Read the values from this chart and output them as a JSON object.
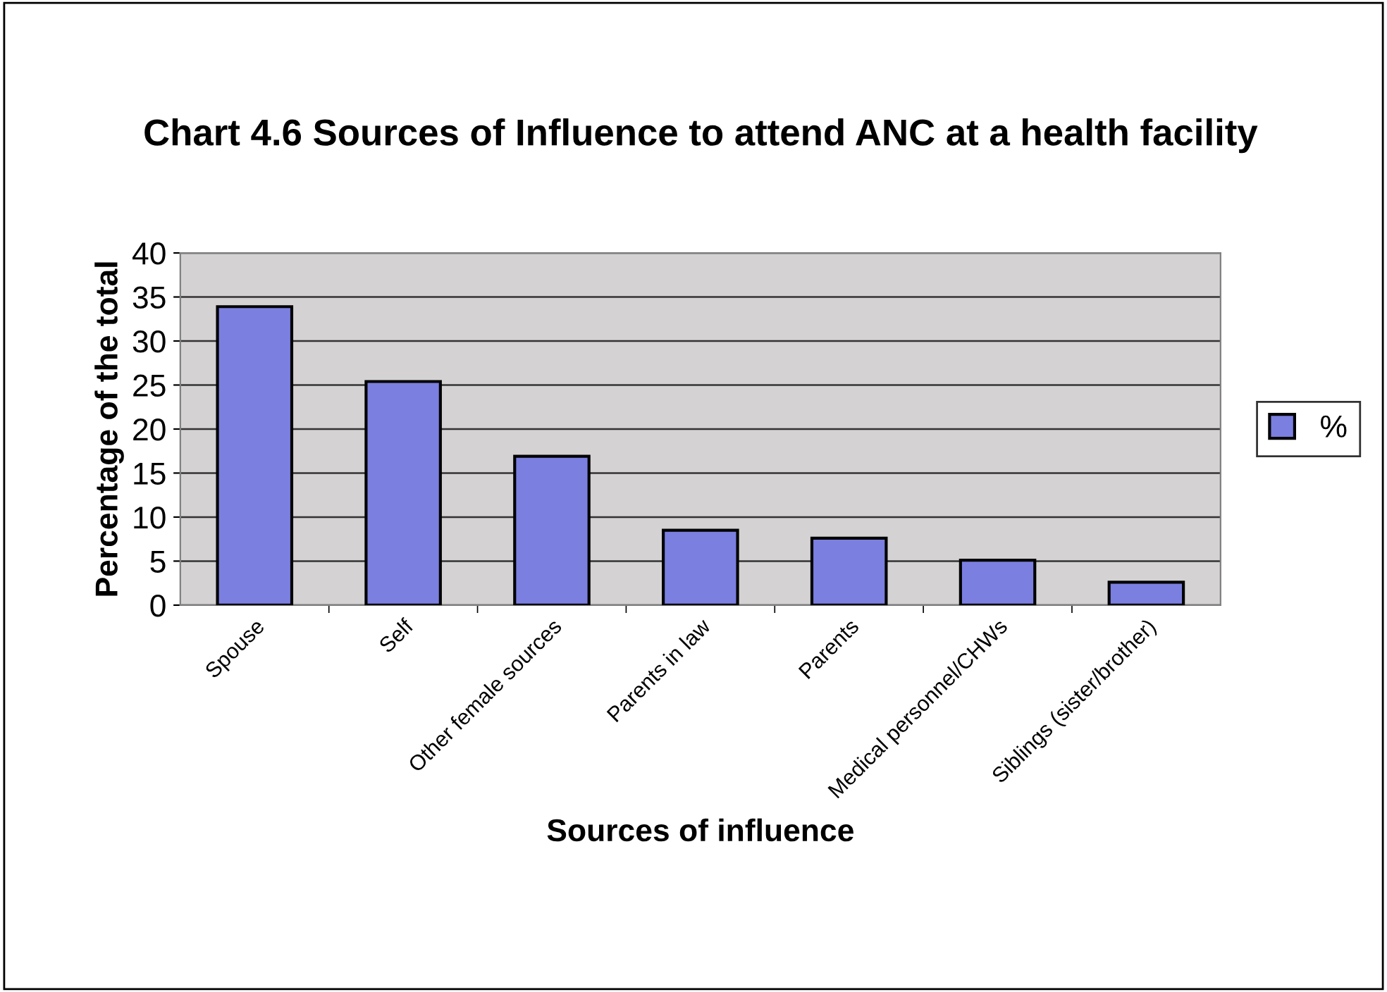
{
  "chart_data": {
    "type": "bar",
    "title": "Chart 4.6 Sources of Influence to attend ANC at a health facility",
    "xlabel": "Sources of influence",
    "ylabel": "Percentage of the total",
    "categories": [
      "Spouse",
      "Self",
      "Other female sources",
      "Parents in law",
      "Parents",
      "Medical personnel/CHWs",
      "Siblings (sister/brother)"
    ],
    "series": [
      {
        "name": "%",
        "color": "#7b7fe0",
        "values": [
          33.9,
          25.4,
          16.9,
          8.5,
          7.6,
          5.1,
          2.6
        ]
      }
    ],
    "ylim": [
      0,
      40
    ],
    "yticks": [
      0,
      5,
      10,
      15,
      20,
      25,
      30,
      35,
      40
    ],
    "grid": "y",
    "legend": "right"
  }
}
